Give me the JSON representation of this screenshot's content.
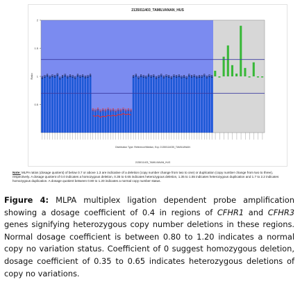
{
  "figure": {
    "chart_title": "2135011403_TAMILVANAN_HUS",
    "x_sub_title": "Distribution Type: Reference/Median, Exp: 21350114035_TAMILVANAN",
    "x_footer": "2135011403_TAMILVANAN_HUS",
    "y_axis_label": "Ratio",
    "colors": {
      "plot_region_left": "#7b8bf0",
      "plot_region_right": "#d7d7d7",
      "bars": "#1c58d6",
      "bars_highlight": "#e13030",
      "ref_line": "#3a3aa0",
      "outlier_bar": "#38b838"
    }
  },
  "chart_data": {
    "type": "bar",
    "title": "2135011403_TAMILVANAN_HUS",
    "ylabel": "Ratio",
    "ylim": [
      0,
      2
    ],
    "yticks": [
      "0.5",
      "1",
      "1.5",
      "2"
    ],
    "reference_lines": [
      0.7,
      1.3
    ],
    "series": [
      {
        "values": [
          0.98,
          1.0,
          1.02,
          0.99,
          1.01,
          1.0,
          1.03,
          0.97,
          1.0,
          1.02,
          0.99,
          1.01,
          1.0,
          0.98,
          1.02,
          1.0,
          1.01,
          0.99,
          1.0,
          1.02,
          0.41,
          0.4,
          0.42,
          0.39,
          0.41,
          0.4,
          0.42,
          0.4,
          0.41,
          0.39,
          0.41,
          0.4,
          0.42,
          0.4,
          0.41,
          0.4,
          1.0,
          1.02,
          0.98,
          1.01,
          1.0,
          0.99,
          1.02,
          1.0,
          1.01,
          0.98,
          1.0,
          1.02,
          0.99,
          1.01,
          1.0,
          0.98,
          1.01,
          1.0,
          1.01,
          0.99,
          1.0,
          0.98,
          1.02,
          1.0,
          1.01,
          0.99,
          1.0,
          1.0,
          1.02,
          0.99,
          1.01,
          1.0
        ]
      },
      {
        "values": [
          1.1,
          0.98,
          1.35,
          1.55,
          1.2,
          1.05,
          1.9,
          1.15,
          1.0,
          1.25,
          1.0,
          0.99
        ]
      }
    ]
  },
  "note": {
    "label": "Note:",
    "text": "MLPA ratios (dosage quotient) of below 0.7 or above 1.3 are indicative of a deletion (copy number change from two to one) or duplication (copy number change from two to three), respectively. A dosage quotient of 0.0 indicates a homozygous deletion, 0.35 to 0.65 indicates heterozygous deletion, 1.35 to 1.55 indicates heterozygous duplication and 1.7 to 2.2 indicates homozygous duplication. A dosage quotient between 0.80 to 1.20 indicates a normal copy number status."
  },
  "caption": {
    "label": "Figure 4:",
    "t1": " MLPA multiplex ligation dependent probe amplification showing a dosage coefficient of 0.4 in regions of ",
    "g1": "CFHR1",
    "t2": " and ",
    "g2": "CFHR3",
    "t3": " genes signifying heterozygous copy number deletions in these regions. Normal dosage coefficient is between 0.80 to 1.20 indicates a normal copy no variation status. Coefficient of 0 suggest homozygous deletion, dosage coefficient of 0.35 to 0.65 indicates heterozygous deletions of copy no variations."
  }
}
